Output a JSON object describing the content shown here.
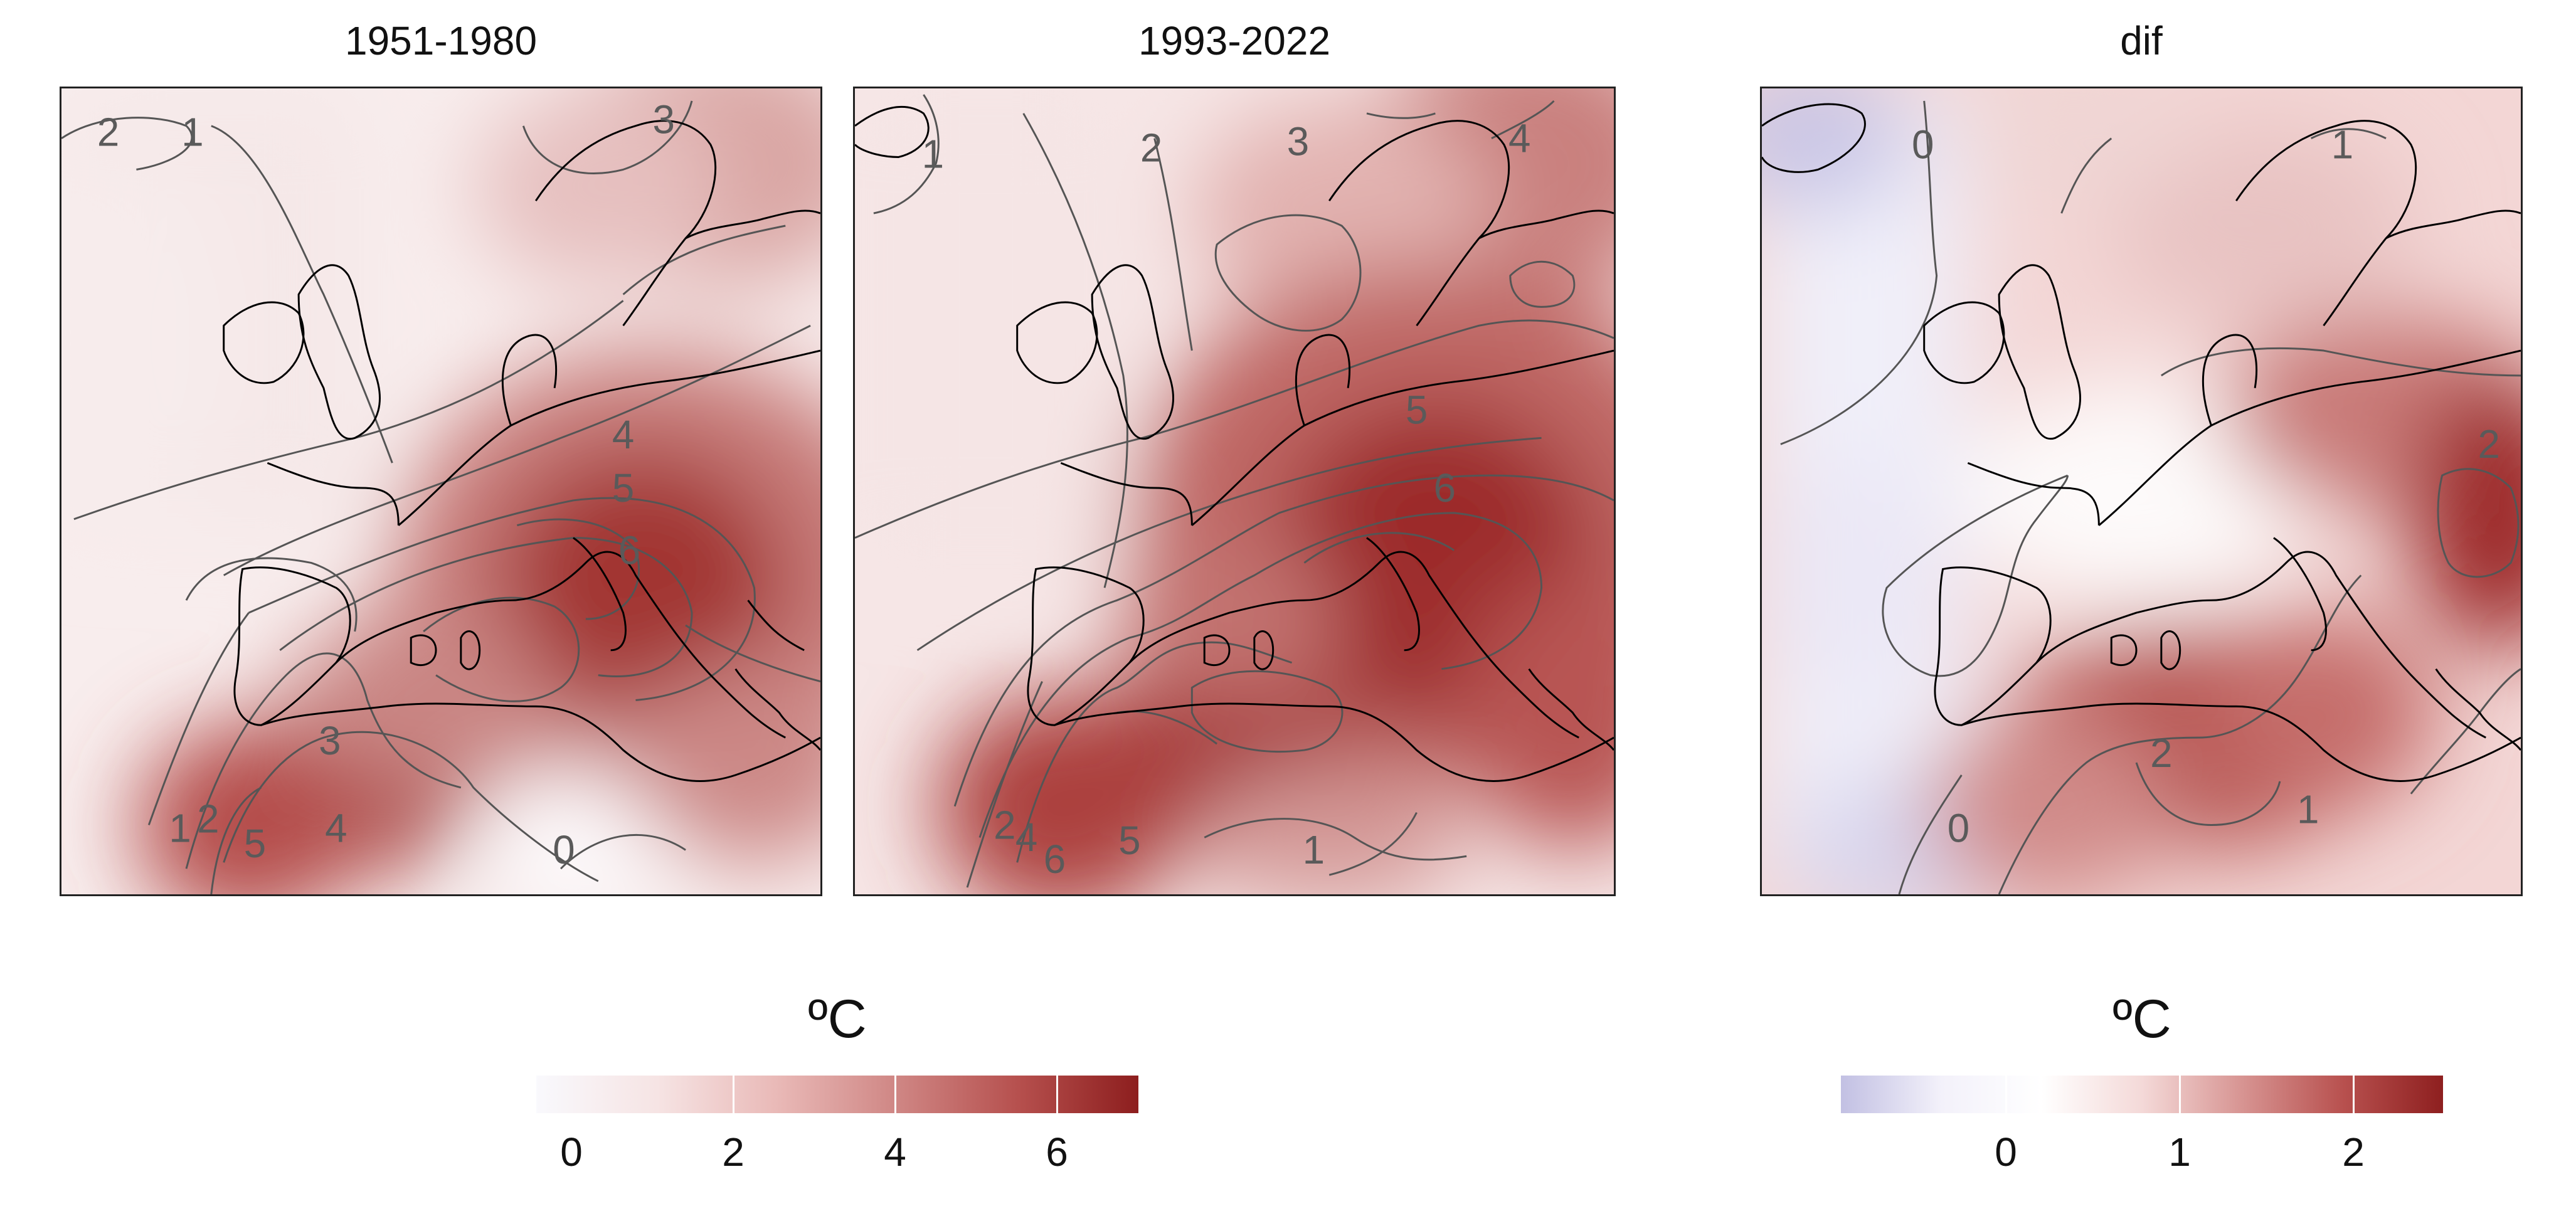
{
  "panels": [
    {
      "title": "1951-1980",
      "contour_labels": [
        "2",
        "1",
        "3",
        "4",
        "5",
        "6",
        "3",
        "1",
        "2",
        "5",
        "4",
        "0"
      ]
    },
    {
      "title": "1993-2022",
      "contour_labels": [
        "1",
        "2",
        "3",
        "4",
        "5",
        "6",
        "2",
        "4",
        "6",
        "5",
        "1"
      ]
    },
    {
      "title": "dif",
      "contour_labels": [
        "0",
        "1",
        "2",
        "2",
        "1",
        "0"
      ]
    }
  ],
  "colorbars": [
    {
      "unit": "ºC",
      "ticks": [
        "0",
        "2",
        "4",
        "6"
      ],
      "colors": [
        "#f9f9fd",
        "#f6e4e4",
        "#e9b9b7",
        "#cf8684",
        "#b6504e",
        "#8d1e1e"
      ]
    },
    {
      "unit": "ºC",
      "ticks": [
        "0",
        "1",
        "2"
      ],
      "colors": [
        "#c2c0e3",
        "#f3f1fa",
        "#ffffff",
        "#f4d9d8",
        "#d79492",
        "#b8514f",
        "#8e1f1f"
      ]
    }
  ]
}
